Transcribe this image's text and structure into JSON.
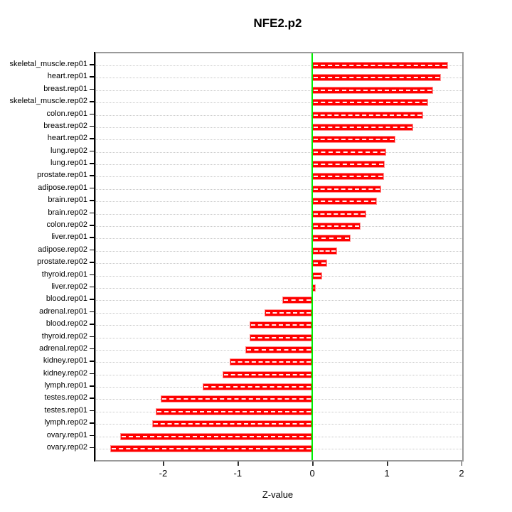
{
  "chart_data": {
    "type": "bar",
    "orientation": "horizontal",
    "title": "NFE2.p2",
    "xlabel": "Z-value",
    "ylabel": "",
    "xlim": [
      -2.9,
      2.01
    ],
    "xticks": [
      -2,
      -1,
      0,
      1,
      2
    ],
    "grid": "dotted horizontal line per category",
    "legend": "none",
    "bar_color": "#ff0000",
    "zero_line_color": "#00ee00",
    "categories": [
      "skeletal_muscle.rep01",
      "heart.rep01",
      "breast.rep01",
      "skeletal_muscle.rep02",
      "colon.rep01",
      "breast.rep02",
      "heart.rep02",
      "lung.rep02",
      "lung.rep01",
      "prostate.rep01",
      "adipose.rep01",
      "brain.rep01",
      "brain.rep02",
      "colon.rep02",
      "liver.rep01",
      "adipose.rep02",
      "prostate.rep02",
      "thyroid.rep01",
      "liver.rep02",
      "blood.rep01",
      "adrenal.rep01",
      "blood.rep02",
      "thyroid.rep02",
      "adrenal.rep02",
      "kidney.rep01",
      "kidney.rep02",
      "lymph.rep01",
      "testes.rep02",
      "testes.rep01",
      "lymph.rep02",
      "ovary.rep01",
      "ovary.rep02"
    ],
    "values": [
      1.82,
      1.72,
      1.62,
      1.55,
      1.49,
      1.35,
      1.11,
      0.99,
      0.97,
      0.96,
      0.92,
      0.87,
      0.72,
      0.65,
      0.51,
      0.33,
      0.2,
      0.13,
      0.05,
      -0.4,
      -0.64,
      -0.84,
      -0.84,
      -0.9,
      -1.11,
      -1.2,
      -1.47,
      -2.03,
      -2.1,
      -2.15,
      -2.58,
      -2.71
    ]
  }
}
